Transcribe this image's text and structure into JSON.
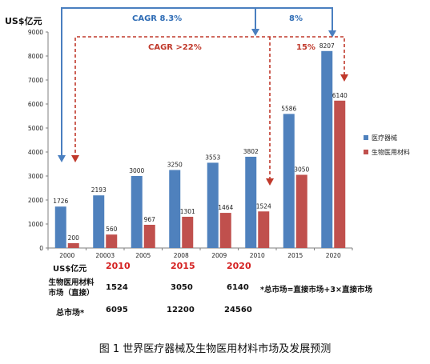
{
  "chart_data": {
    "type": "bar",
    "ylabel": "US$亿元",
    "ylim": [
      0,
      9000
    ],
    "yticks": [
      0,
      1000,
      2000,
      3000,
      4000,
      5000,
      6000,
      7000,
      8000,
      9000
    ],
    "categories": [
      "2000",
      "20003",
      "2005",
      "2008",
      "2009",
      "2010",
      "2015",
      "2020"
    ],
    "series": [
      {
        "name": "医疗器械",
        "color": "#4f81bd",
        "values": [
          1726,
          2193,
          3000,
          3250,
          3553,
          3802,
          5586,
          8207
        ]
      },
      {
        "name": "生物医用材料",
        "color": "#c0504d",
        "values": [
          200,
          560,
          967,
          1301,
          1464,
          1524,
          3050,
          6140
        ]
      }
    ],
    "legend_position": "right",
    "annotations": {
      "blue_cagr": "CAGR 8.3%",
      "blue_rate": "8%",
      "red_cagr": "CAGR >22%",
      "red_rate": "15%"
    }
  },
  "table": {
    "unit_label": "US$亿元",
    "years": [
      "2010",
      "2015",
      "2020"
    ],
    "row1_label_line1": "生物医用材料",
    "row1_label_line2": "市场（直接）",
    "row1_values": [
      "1524",
      "3050",
      "6140"
    ],
    "row2_label": "总市场*",
    "row2_values": [
      "6095",
      "12200",
      "24560"
    ],
    "footnote": "*总市场=直接市场+3×直接市场"
  },
  "caption": "图 1  世界医疗器械及生物医用材料市场及发展预测"
}
